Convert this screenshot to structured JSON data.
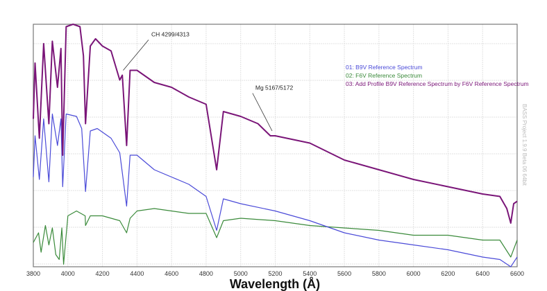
{
  "chart_data": {
    "type": "line",
    "title": "",
    "xlabel": "Wavelength (Å)",
    "ylabel": "",
    "xlim": [
      3800,
      6600
    ],
    "ylim": [
      0,
      1
    ],
    "grid": true,
    "legend_placement": "top-right",
    "x_ticks": [
      "3800",
      "4000",
      "4200",
      "4400",
      "4600",
      "4800",
      "5000",
      "5200",
      "5400",
      "5600",
      "5800",
      "6000",
      "6200",
      "6400",
      "6600"
    ],
    "series": [
      {
        "name": "01: B9V Reference Spectrum",
        "color": "#4a4ad8",
        "x": [
          3800,
          3810,
          3835,
          3860,
          3890,
          3910,
          3940,
          3960,
          3970,
          3990,
          4050,
          4080,
          4102,
          4130,
          4170,
          4250,
          4300,
          4340,
          4360,
          4400,
          4500,
          4600,
          4700,
          4800,
          4861,
          4900,
          5000,
          5200,
          5400,
          5600,
          5800,
          6000,
          6200,
          6400,
          6500,
          6563,
          6600
        ],
        "y": [
          0.37,
          0.54,
          0.36,
          0.61,
          0.35,
          0.63,
          0.5,
          0.61,
          0.33,
          0.63,
          0.62,
          0.57,
          0.31,
          0.56,
          0.57,
          0.53,
          0.47,
          0.25,
          0.46,
          0.46,
          0.4,
          0.37,
          0.34,
          0.29,
          0.15,
          0.28,
          0.26,
          0.23,
          0.19,
          0.14,
          0.11,
          0.09,
          0.07,
          0.04,
          0.03,
          0.0,
          0.04
        ]
      },
      {
        "name": "02: F6V Reference Spectrum",
        "color": "#3a8a3a",
        "x": [
          3800,
          3830,
          3845,
          3870,
          3890,
          3910,
          3930,
          3950,
          3965,
          3975,
          3990,
          4000,
          4050,
          4100,
          4102,
          4130,
          4200,
          4300,
          4340,
          4360,
          4400,
          4500,
          4600,
          4700,
          4800,
          4861,
          4900,
          5000,
          5200,
          5400,
          5600,
          5800,
          6000,
          6200,
          6400,
          6500,
          6563,
          6600
        ],
        "y": [
          0.1,
          0.14,
          0.06,
          0.17,
          0.09,
          0.16,
          0.05,
          0.03,
          0.16,
          0.01,
          0.13,
          0.21,
          0.23,
          0.21,
          0.17,
          0.21,
          0.21,
          0.19,
          0.14,
          0.2,
          0.23,
          0.24,
          0.23,
          0.22,
          0.22,
          0.12,
          0.19,
          0.2,
          0.19,
          0.17,
          0.16,
          0.15,
          0.13,
          0.13,
          0.11,
          0.11,
          0.04,
          0.11
        ]
      },
      {
        "name": "03: Add Profile B9V Reference Spectrum by F6V Reference Spectrum",
        "color": "#7a1578",
        "x": [
          3800,
          3810,
          3835,
          3860,
          3890,
          3910,
          3940,
          3960,
          3970,
          3990,
          4030,
          4070,
          4090,
          4102,
          4130,
          4160,
          4200,
          4250,
          4300,
          4315,
          4340,
          4360,
          4400,
          4500,
          4600,
          4700,
          4800,
          4861,
          4900,
          5000,
          5100,
          5172,
          5200,
          5400,
          5600,
          5800,
          6000,
          6200,
          6400,
          6500,
          6540,
          6563,
          6580,
          6600
        ],
        "y": [
          0.61,
          0.84,
          0.53,
          0.92,
          0.59,
          0.93,
          0.74,
          0.9,
          0.46,
          0.99,
          1.0,
          0.99,
          0.87,
          0.59,
          0.91,
          0.94,
          0.91,
          0.89,
          0.77,
          0.79,
          0.5,
          0.81,
          0.81,
          0.76,
          0.74,
          0.7,
          0.67,
          0.4,
          0.64,
          0.62,
          0.59,
          0.54,
          0.54,
          0.51,
          0.44,
          0.4,
          0.36,
          0.33,
          0.3,
          0.29,
          0.24,
          0.18,
          0.26,
          0.27
        ]
      }
    ],
    "annotations": [
      {
        "text": "CH 4299/4313",
        "x": 4320,
        "y": 0.81,
        "text_x": 4483,
        "text_y": 0.95
      },
      {
        "text": "Mg 5167/5172",
        "x": 5182,
        "y": 0.56,
        "text_x": 5085,
        "text_y": 0.73
      }
    ],
    "watermark": "BASS Project 1.9.9 Beta 06 64bit"
  }
}
